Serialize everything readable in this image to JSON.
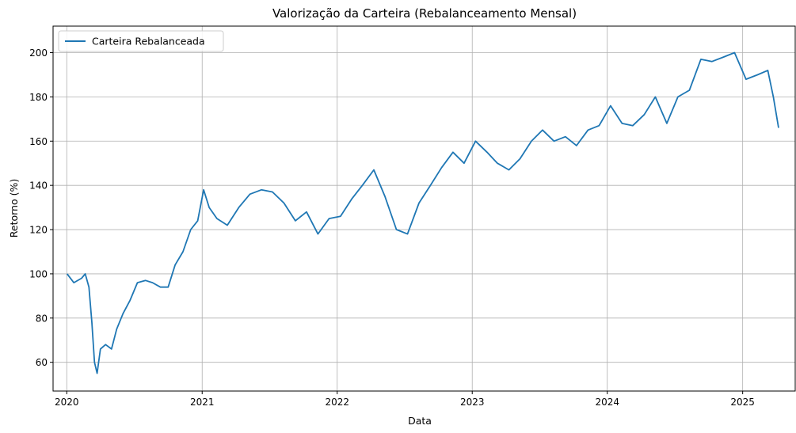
{
  "chart_data": {
    "type": "line",
    "title": "Valorização da Carteira (Rebalanceamento Mensal)",
    "xlabel": "Data",
    "ylabel": "Retorno (%)",
    "xlim": [
      "2019-11-25",
      "2025-05-23"
    ],
    "ylim": [
      47,
      212
    ],
    "x_ticks": [
      "2020",
      "2021",
      "2022",
      "2023",
      "2024",
      "2025"
    ],
    "x_tick_dates": [
      "2020-01-01",
      "2021-01-01",
      "2022-01-01",
      "2023-01-01",
      "2024-01-01",
      "2025-01-01"
    ],
    "y_ticks": [
      60,
      80,
      100,
      120,
      140,
      160,
      180,
      200
    ],
    "grid": true,
    "legend": {
      "position": "top-left"
    },
    "series": [
      {
        "name": "Carteira Rebalanceada",
        "color": "#1f77b4",
        "x": [
          "2020-01-02",
          "2020-01-20",
          "2020-02-10",
          "2020-02-20",
          "2020-03-01",
          "2020-03-09",
          "2020-03-16",
          "2020-03-23",
          "2020-04-01",
          "2020-04-15",
          "2020-05-01",
          "2020-05-15",
          "2020-06-01",
          "2020-06-20",
          "2020-07-10",
          "2020-08-01",
          "2020-08-20",
          "2020-09-10",
          "2020-10-01",
          "2020-10-20",
          "2020-11-10",
          "2020-12-01",
          "2020-12-20",
          "2021-01-05",
          "2021-01-20",
          "2021-02-10",
          "2021-03-10",
          "2021-04-10",
          "2021-05-10",
          "2021-06-10",
          "2021-07-10",
          "2021-08-10",
          "2021-09-10",
          "2021-10-10",
          "2021-11-10",
          "2021-12-10",
          "2022-01-10",
          "2022-02-10",
          "2022-03-10",
          "2022-04-10",
          "2022-05-10",
          "2022-06-10",
          "2022-07-10",
          "2022-08-10",
          "2022-09-10",
          "2022-10-10",
          "2022-11-10",
          "2022-12-10",
          "2023-01-10",
          "2023-02-10",
          "2023-03-10",
          "2023-04-10",
          "2023-05-10",
          "2023-06-10",
          "2023-07-10",
          "2023-08-10",
          "2023-09-10",
          "2023-10-10",
          "2023-11-10",
          "2023-12-10",
          "2024-01-10",
          "2024-02-10",
          "2024-03-10",
          "2024-04-10",
          "2024-05-10",
          "2024-06-10",
          "2024-07-10",
          "2024-08-10",
          "2024-09-10",
          "2024-10-10",
          "2024-11-10",
          "2024-12-10",
          "2025-01-10",
          "2025-02-10",
          "2025-03-10",
          "2025-03-25",
          "2025-04-08"
        ],
        "y": [
          100,
          96,
          98,
          100,
          94,
          78,
          60,
          55,
          66,
          68,
          66,
          75,
          82,
          88,
          96,
          97,
          96,
          94,
          94,
          104,
          110,
          120,
          124,
          138,
          130,
          125,
          122,
          130,
          136,
          138,
          137,
          132,
          124,
          128,
          118,
          125,
          126,
          134,
          140,
          147,
          135,
          120,
          118,
          132,
          140,
          148,
          155,
          150,
          160,
          155,
          150,
          147,
          152,
          160,
          165,
          160,
          162,
          158,
          165,
          167,
          176,
          168,
          167,
          172,
          180,
          168,
          180,
          183,
          197,
          196,
          198,
          200,
          188,
          190,
          192,
          180,
          166
        ]
      }
    ]
  }
}
